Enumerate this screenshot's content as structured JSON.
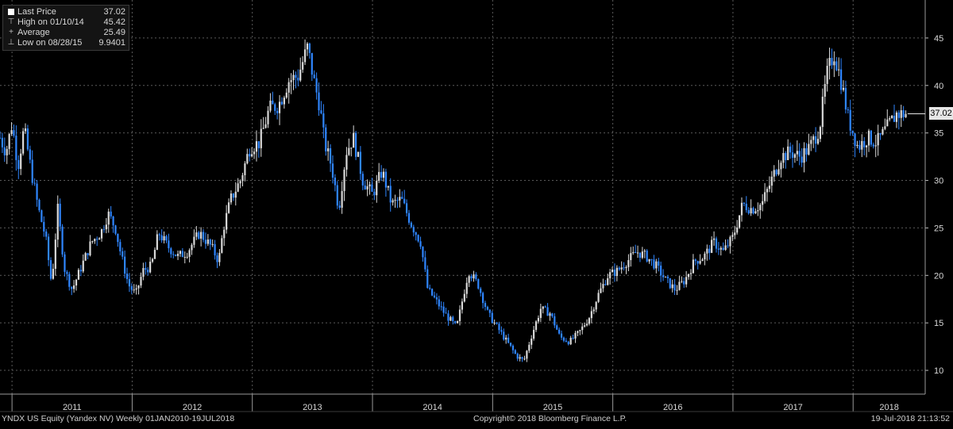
{
  "legend": {
    "last_label": "Last Price",
    "last_value": "37.02",
    "high_label": "High on 01/10/14",
    "high_value": "45.42",
    "avg_label": "Average",
    "avg_value": "25.49",
    "low_label": "Low on 08/28/15",
    "low_value": "9.9401",
    "icons": [
      "white-square-icon",
      "high-marker-icon",
      "average-marker-icon",
      "low-marker-icon"
    ]
  },
  "last_tag": "37.02",
  "footer": {
    "left": "YNDX US Equity (Yandex NV)  Weekly 01JAN2010-19JUL2018",
    "middle": "Copyright© 2018 Bloomberg Finance L.P.",
    "right": "19-Jul-2018 21:13:52"
  },
  "colors": {
    "background": "#000000",
    "up_candle": "#d9d9d9",
    "down_candle": "#2f86ff",
    "grid": "#5a5a5a",
    "text": "#d8d8d8"
  },
  "chart_data": {
    "type": "candlestick",
    "frequency": "weekly",
    "y_axis_side": "right",
    "ylim": [
      7.5,
      49
    ],
    "yticks": [
      10,
      15,
      20,
      25,
      30,
      35,
      40,
      45
    ],
    "x_tick_labels": [
      "2011",
      "2012",
      "2013",
      "2014",
      "2015",
      "2016",
      "2017",
      "2018"
    ],
    "x_year_start": 2010.9,
    "x_year_end": 2018.6,
    "grid": true,
    "legend_position": "top-left",
    "close_anchors": [
      [
        2010.9,
        34.5
      ],
      [
        2010.95,
        33.0
      ],
      [
        2011.0,
        36.0
      ],
      [
        2011.05,
        31.5
      ],
      [
        2011.1,
        35.5
      ],
      [
        2011.16,
        31.0
      ],
      [
        2011.22,
        27.0
      ],
      [
        2011.28,
        24.0
      ],
      [
        2011.33,
        19.0
      ],
      [
        2011.38,
        27.0
      ],
      [
        2011.44,
        20.5
      ],
      [
        2011.5,
        18.5
      ],
      [
        2011.58,
        21.0
      ],
      [
        2011.66,
        23.5
      ],
      [
        2011.74,
        24.5
      ],
      [
        2011.8,
        26.5
      ],
      [
        2011.86,
        25.0
      ],
      [
        2011.91,
        22.0
      ],
      [
        2011.97,
        19.0
      ],
      [
        2012.03,
        18.0
      ],
      [
        2012.09,
        20.5
      ],
      [
        2012.16,
        21.0
      ],
      [
        2012.22,
        24.5
      ],
      [
        2012.3,
        23.0
      ],
      [
        2012.38,
        22.0
      ],
      [
        2012.46,
        22.5
      ],
      [
        2012.56,
        24.5
      ],
      [
        2012.66,
        23.0
      ],
      [
        2012.72,
        21.5
      ],
      [
        2012.76,
        25.0
      ],
      [
        2012.82,
        28.0
      ],
      [
        2012.9,
        30.0
      ],
      [
        2012.98,
        33.5
      ],
      [
        2013.06,
        34.0
      ],
      [
        2013.14,
        37.5
      ],
      [
        2013.22,
        38.0
      ],
      [
        2013.3,
        40.5
      ],
      [
        2013.38,
        41.0
      ],
      [
        2013.46,
        44.0
      ],
      [
        2013.52,
        40.0
      ],
      [
        2013.56,
        38.0
      ],
      [
        2013.6,
        34.0
      ],
      [
        2013.66,
        31.5
      ],
      [
        2013.72,
        27.0
      ],
      [
        2013.78,
        33.0
      ],
      [
        2013.84,
        34.5
      ],
      [
        2013.92,
        30.0
      ],
      [
        2014.0,
        28.5
      ],
      [
        2014.08,
        31.0
      ],
      [
        2014.16,
        27.5
      ],
      [
        2014.24,
        28.0
      ],
      [
        2014.32,
        25.5
      ],
      [
        2014.4,
        23.5
      ],
      [
        2014.46,
        18.5
      ],
      [
        2014.52,
        17.5
      ],
      [
        2014.6,
        16.0
      ],
      [
        2014.7,
        14.5
      ],
      [
        2014.8,
        20.5
      ],
      [
        2014.88,
        19.0
      ],
      [
        2014.96,
        16.0
      ],
      [
        2015.04,
        14.5
      ],
      [
        2015.12,
        13.0
      ],
      [
        2015.2,
        11.5
      ],
      [
        2015.26,
        11.0
      ],
      [
        2015.32,
        13.5
      ],
      [
        2015.4,
        16.5
      ],
      [
        2015.48,
        16.0
      ],
      [
        2015.56,
        13.5
      ],
      [
        2015.64,
        13.0
      ],
      [
        2015.72,
        14.0
      ],
      [
        2015.8,
        15.5
      ],
      [
        2015.88,
        18.0
      ],
      [
        2015.96,
        20.0
      ],
      [
        2016.04,
        20.5
      ],
      [
        2016.12,
        21.5
      ],
      [
        2016.2,
        22.5
      ],
      [
        2016.28,
        22.0
      ],
      [
        2016.36,
        21.0
      ],
      [
        2016.44,
        19.5
      ],
      [
        2016.52,
        18.5
      ],
      [
        2016.6,
        19.5
      ],
      [
        2016.68,
        21.5
      ],
      [
        2016.76,
        22.0
      ],
      [
        2016.84,
        23.5
      ],
      [
        2016.92,
        22.5
      ],
      [
        2017.0,
        24.0
      ],
      [
        2017.08,
        27.5
      ],
      [
        2017.16,
        27.0
      ],
      [
        2017.24,
        27.5
      ],
      [
        2017.32,
        30.0
      ],
      [
        2017.4,
        32.5
      ],
      [
        2017.48,
        33.0
      ],
      [
        2017.56,
        32.5
      ],
      [
        2017.64,
        33.5
      ],
      [
        2017.72,
        35.5
      ],
      [
        2017.78,
        41.0
      ],
      [
        2017.84,
        43.5
      ],
      [
        2017.9,
        40.5
      ],
      [
        2017.96,
        36.5
      ],
      [
        2018.04,
        33.5
      ],
      [
        2018.12,
        34.5
      ],
      [
        2018.2,
        34.0
      ],
      [
        2018.28,
        35.5
      ],
      [
        2018.36,
        37.0
      ],
      [
        2018.44,
        37.02
      ]
    ],
    "last_price": 37.02,
    "high": 45.42,
    "high_date": "01/10/14",
    "average": 25.49,
    "low": 9.9401,
    "low_date": "08/28/15"
  }
}
